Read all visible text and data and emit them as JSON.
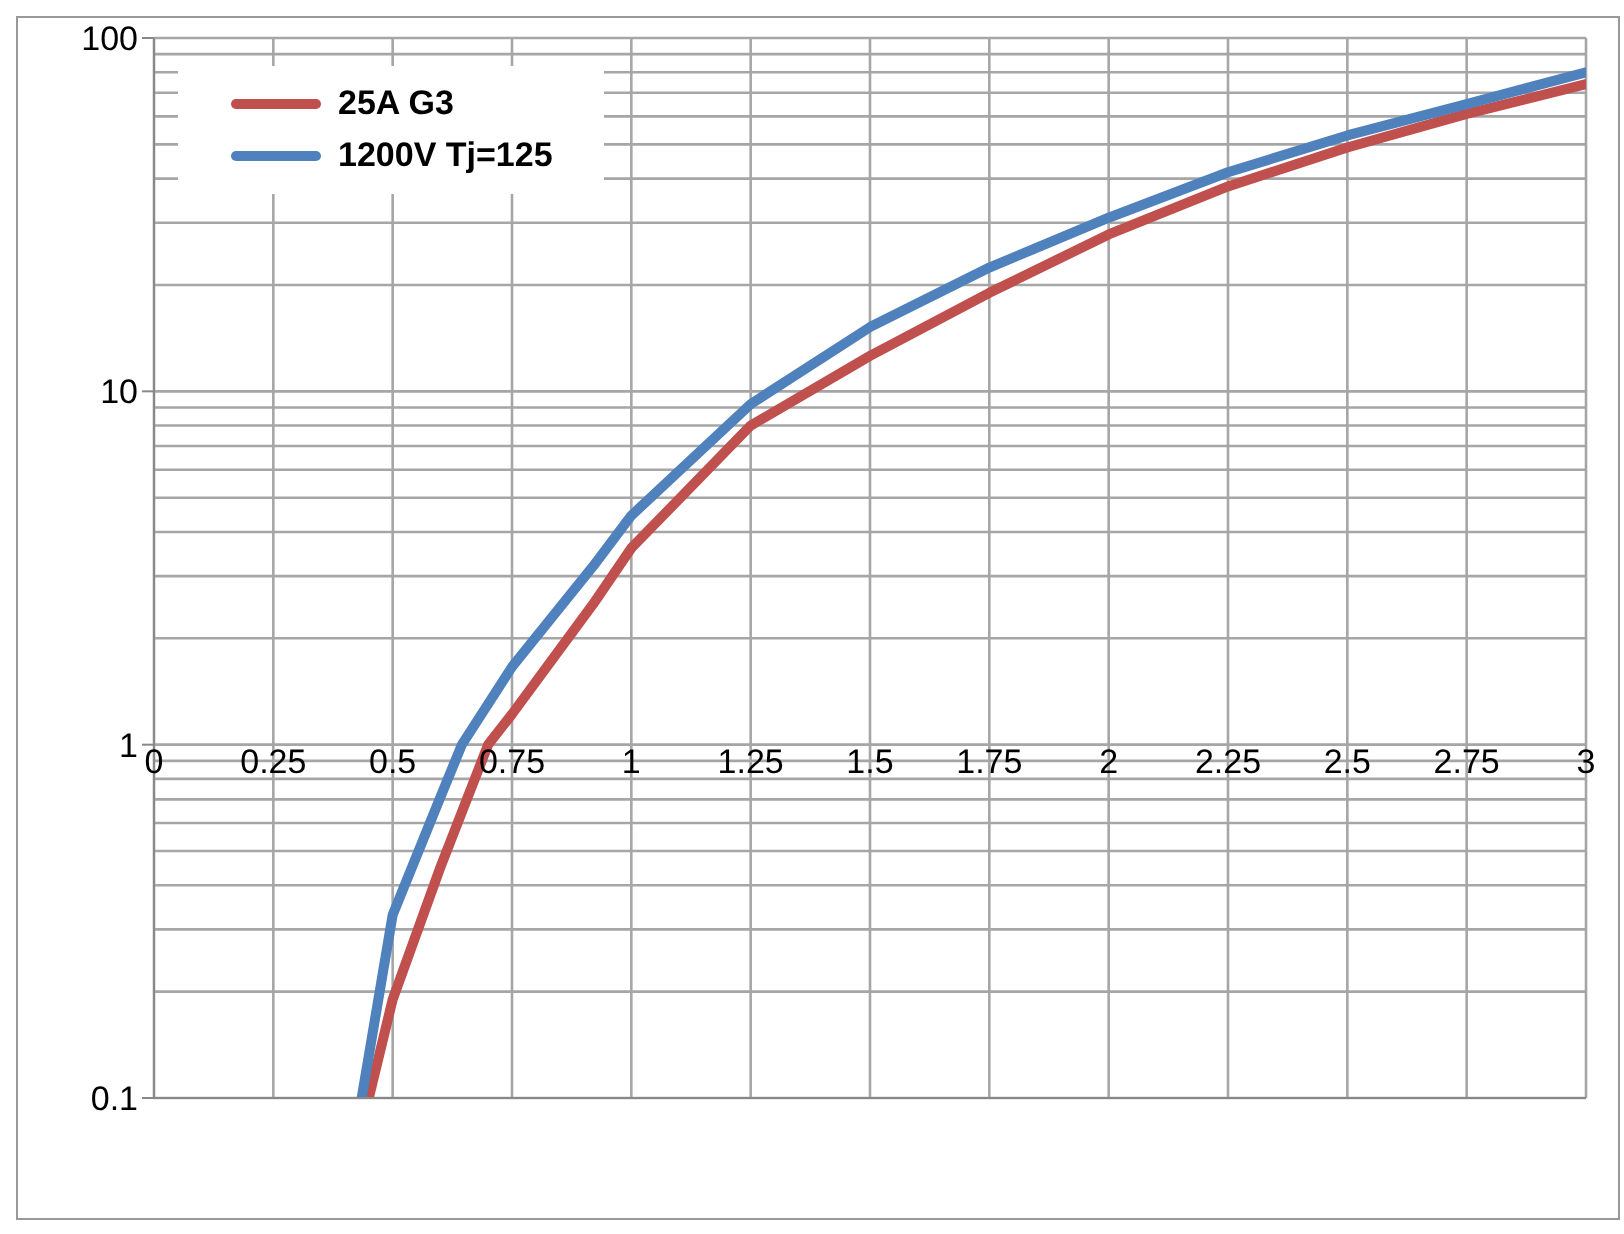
{
  "chart_data": {
    "type": "line",
    "log": "y",
    "grid": true,
    "legend": "top left",
    "marker": "none",
    "line_style": "solid",
    "xlim": [
      0,
      3
    ],
    "xticks": [
      0,
      0.25,
      0.5,
      0.75,
      1,
      1.25,
      1.5,
      1.75,
      2,
      2.25,
      2.5,
      2.75,
      3
    ],
    "ylim": [
      0.1,
      100
    ],
    "yticks": [
      0.1,
      1,
      10,
      100
    ],
    "series": [
      {
        "name": "25A G3",
        "color": "#c0504d",
        "x": [
          0.45,
          0.5,
          0.6,
          0.7,
          0.75,
          0.92,
          1,
          1.25,
          1.5,
          1.75,
          2,
          2.25,
          2.5,
          2.75,
          3
        ],
        "values": [
          0.1,
          0.19,
          0.45,
          1,
          1.22,
          2.5,
          3.6,
          8,
          12.6,
          19,
          27.8,
          38,
          49,
          61,
          74
        ]
      },
      {
        "name": "1200V Tj=125",
        "color": "#4f81bd",
        "x": [
          0.435,
          0.5,
          0.6,
          0.645,
          0.75,
          0.92,
          1,
          1.25,
          1.5,
          1.75,
          2,
          2.25,
          2.5,
          2.75,
          3
        ],
        "values": [
          0.1,
          0.33,
          0.71,
          1,
          1.66,
          3.2,
          4.45,
          9.2,
          15.2,
          22.4,
          31,
          41.7,
          53,
          65,
          80
        ]
      }
    ]
  }
}
